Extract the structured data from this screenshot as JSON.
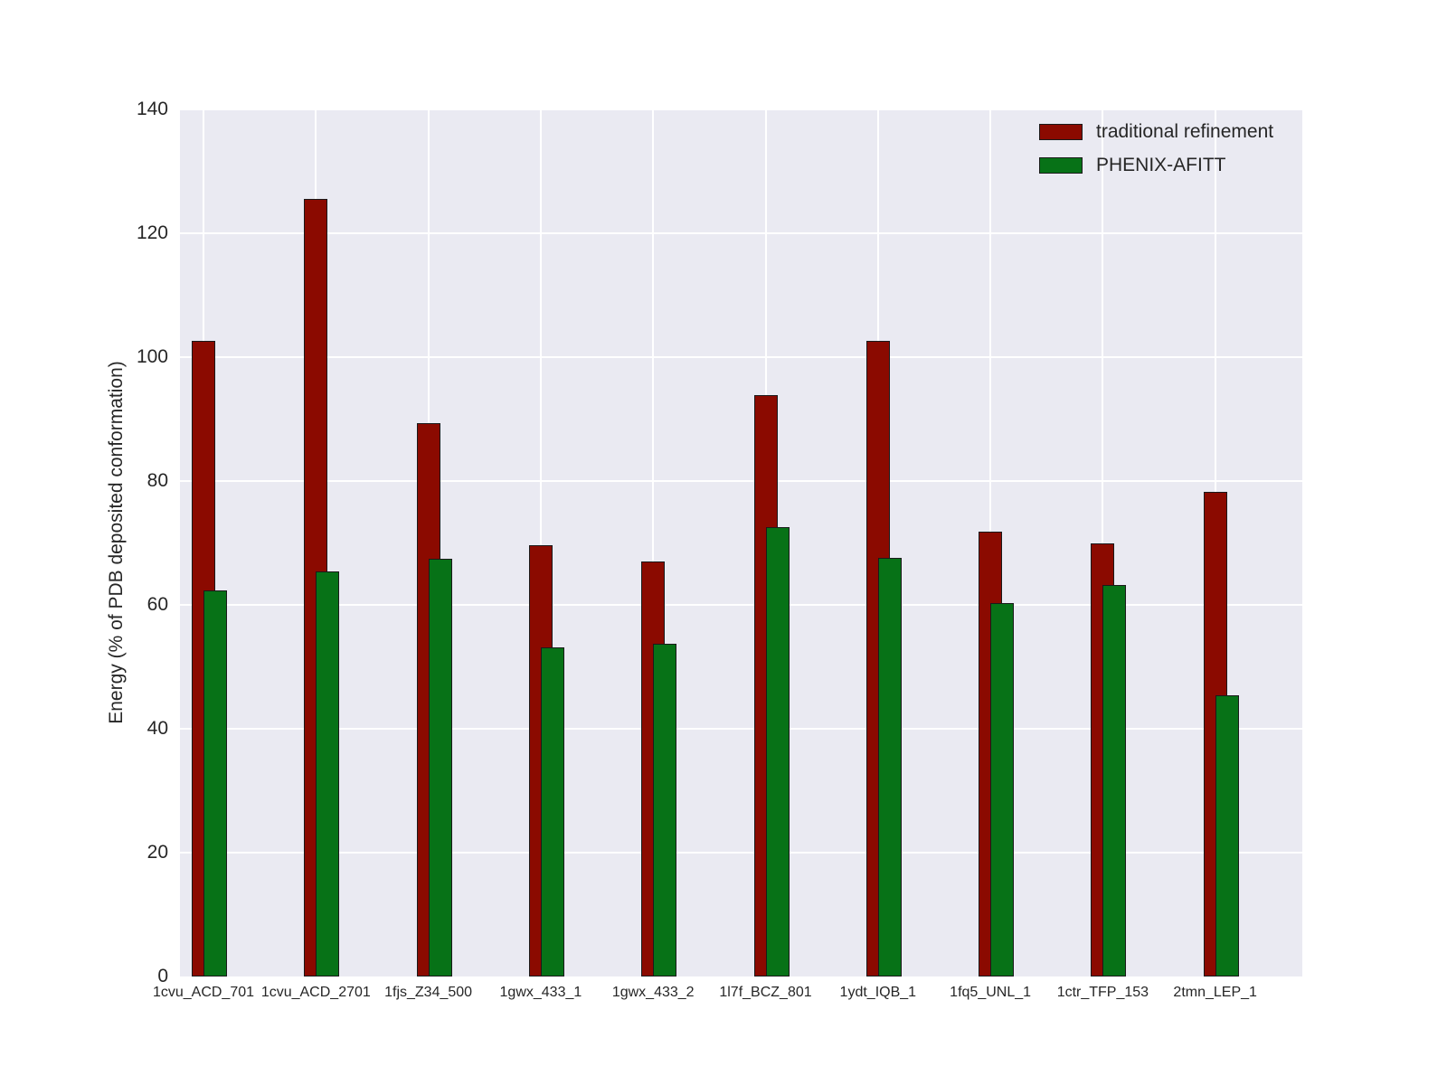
{
  "axes": {
    "ylabel": "Energy (% of PDB deposited conformation)",
    "background_color": "#eaeaf2",
    "grid_color": "#ffffff",
    "text_color": "#262626"
  },
  "legend": {
    "position": "upper right",
    "items": [
      {
        "label": "traditional refinement",
        "color": "#8b0a00"
      },
      {
        "label": "PHENIX-AFITT",
        "color": "#077217"
      }
    ]
  },
  "chart_data": {
    "type": "bar",
    "categories": [
      "1cvu_ACD_701",
      "1cvu_ACD_2701",
      "1fjs_Z34_500",
      "1gwx_433_1",
      "1gwx_433_2",
      "1l7f_BCZ_801",
      "1ydt_IQB_1",
      "1fq5_UNL_1",
      "1ctr_TFP_153",
      "2tmn_LEP_1"
    ],
    "series": [
      {
        "name": "traditional refinement",
        "color": "#8b0a00",
        "edge_color": "#1a1a1a",
        "values": [
          102.6,
          125.6,
          89.3,
          69.6,
          67.0,
          93.8,
          102.6,
          71.9,
          70.0,
          78.3
        ]
      },
      {
        "name": "PHENIX-AFITT",
        "color": "#077217",
        "edge_color": "#1a1a1a",
        "values": [
          62.4,
          65.4,
          67.4,
          53.1,
          53.7,
          72.6,
          67.6,
          60.3,
          63.2,
          45.4
        ]
      }
    ],
    "title": "",
    "xlabel": "",
    "ylabel": "Energy (% of PDB deposited conformation)",
    "ylim": [
      0,
      140
    ],
    "yticks": [
      0,
      20,
      40,
      60,
      80,
      100,
      120,
      140
    ],
    "grid": true,
    "bar_style": "overlapping",
    "legend_position": "upper right"
  }
}
